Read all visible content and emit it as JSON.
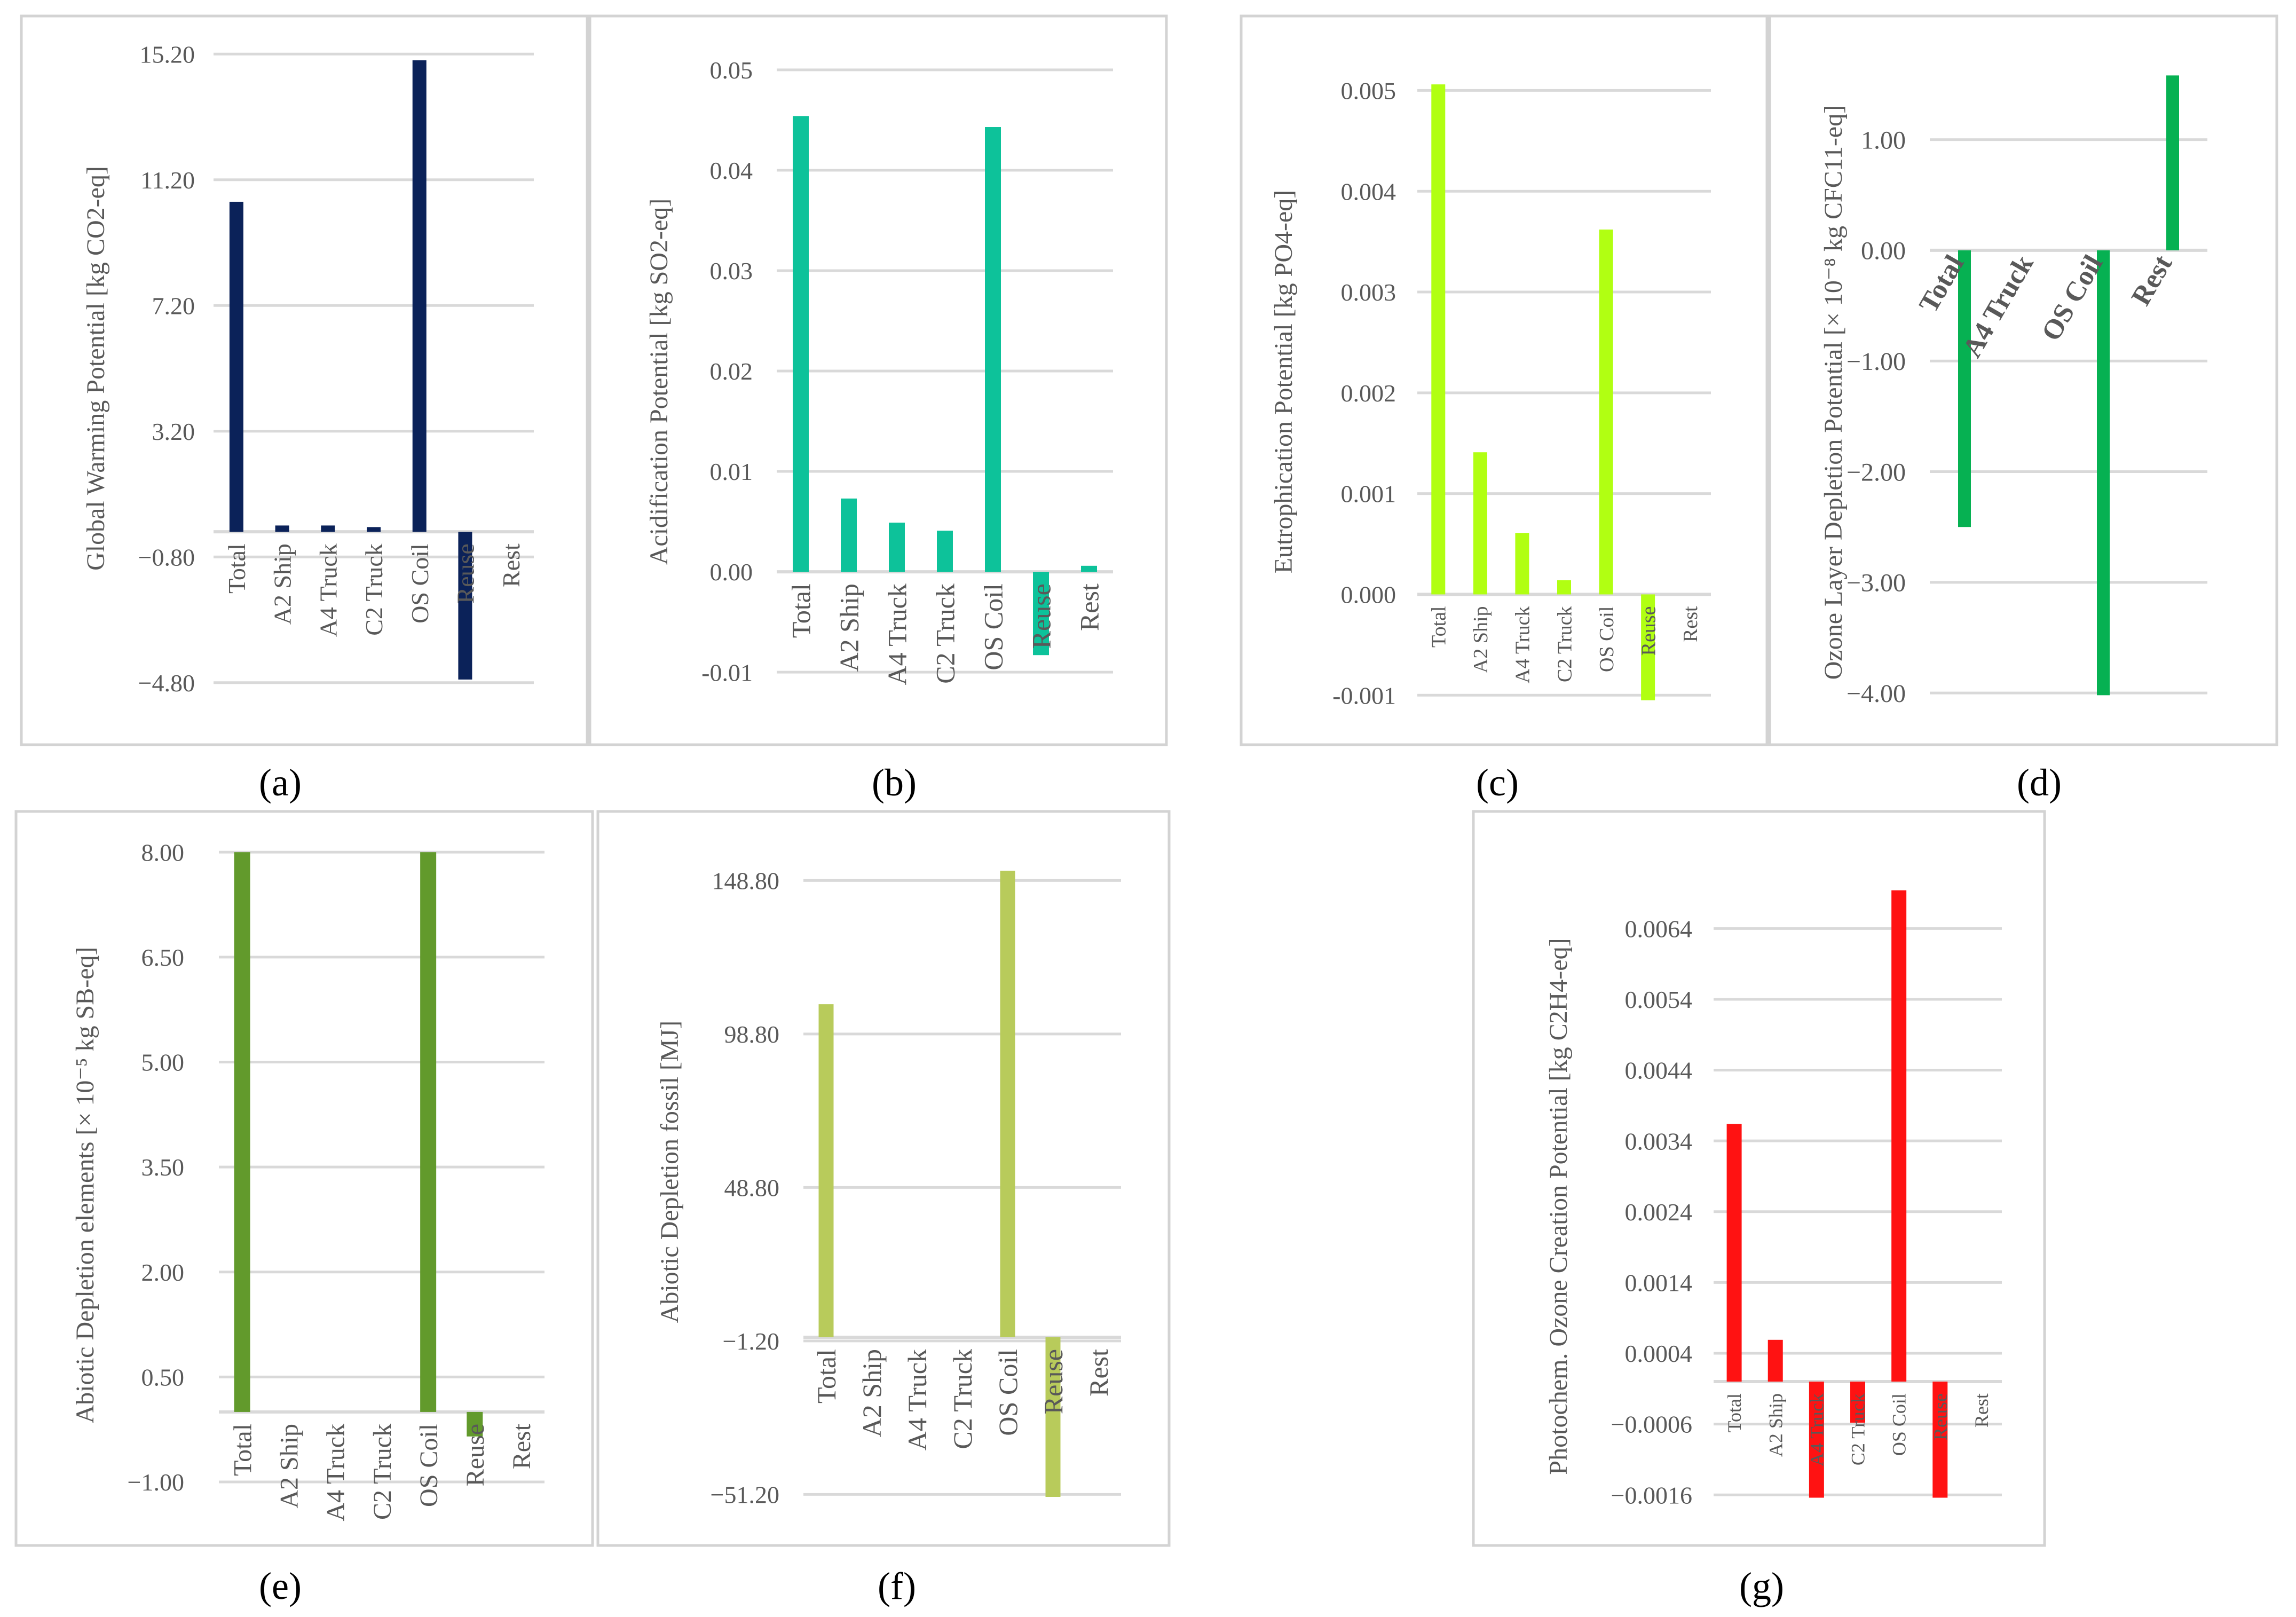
{
  "figure": {
    "panel_labels": [
      "(a)",
      "(b)",
      "(c)",
      "(d)",
      "(e)",
      "(f)",
      "(g)"
    ]
  },
  "colors": {
    "frame": "#d3d3d3",
    "grid": "#d9d9d9",
    "text": "#595959",
    "label": "#000000"
  },
  "chart_data": [
    {
      "id": "a",
      "type": "bar",
      "ylabel": "Global Warming Potential [kg CO2-eq]",
      "categories": [
        "Total",
        "A2 Ship",
        "A4 Truck",
        "C2 Truck",
        "OS Coil",
        "Reuse",
        "Rest"
      ],
      "values": [
        10.5,
        0.2,
        0.2,
        0.15,
        15.0,
        -4.7,
        0
      ],
      "yticks": [
        15.2,
        11.2,
        7.2,
        3.2,
        -0.8,
        -4.8
      ],
      "tick_labels": [
        "15.20",
        "11.20",
        "7.20",
        "3.20",
        "−0.80",
        "−4.80"
      ],
      "ylim": [
        -5.5,
        15.9
      ],
      "color": "#0b2259"
    },
    {
      "id": "b",
      "type": "bar",
      "ylabel": "Acidification Potential [kg SO2-eq]",
      "categories": [
        "Total",
        "A2 Ship",
        "A4 Truck",
        "C2 Truck",
        "OS Coil",
        "Reuse",
        "Rest"
      ],
      "values": [
        0.0454,
        0.0073,
        0.0049,
        0.0041,
        0.0443,
        -0.0083,
        0.0006
      ],
      "yticks": [
        0.05,
        0.04,
        0.03,
        0.02,
        0.01,
        0.0,
        -0.01
      ],
      "tick_labels": [
        "0.05",
        "0.04",
        "0.03",
        "0.02",
        "0.01",
        "0.00",
        "-0.01"
      ],
      "ylim": [
        -0.0135,
        0.0535
      ],
      "color": "#0dc29a"
    },
    {
      "id": "c",
      "type": "bar",
      "ylabel": "Eutrophication Potential [kg PO4-eq]",
      "categories": [
        "Total",
        "A2 Ship",
        "A4 Truck",
        "C2 Truck",
        "OS Coil",
        "Reuse",
        "Rest"
      ],
      "values": [
        0.00506,
        0.00141,
        0.00061,
        0.00014,
        0.00362,
        -0.00105,
        0
      ],
      "yticks": [
        0.005,
        0.004,
        0.003,
        0.002,
        0.001,
        0.0,
        -0.001
      ],
      "tick_labels": [
        "0.005",
        "0.004",
        "0.003",
        "0.002",
        "0.001",
        "0.000",
        "-0.001"
      ],
      "ylim": [
        -0.0012,
        0.0055
      ],
      "color": "#b1ff12"
    },
    {
      "id": "d",
      "type": "bar",
      "ylabel": "Ozone Layer Depletion Potential [× 10⁻⁸ kg CFC11-eq]",
      "categories": [
        "Total",
        "A4 Truck",
        "OS Coil",
        "Rest"
      ],
      "values": [
        -2.5,
        0,
        -4.02,
        1.58
      ],
      "yticks": [
        1.0,
        0.0,
        -1.0,
        -2.0,
        -3.0,
        -4.0
      ],
      "tick_labels": [
        "1.00",
        "0.00",
        "−1.00",
        "−2.00",
        "−3.00",
        "−4.00"
      ],
      "ylim": [
        -4.25,
        1.9
      ],
      "color": "#06b152"
    },
    {
      "id": "e",
      "type": "bar",
      "ylabel": "Abiotic Depletion elements [× 10⁻⁵ kg SB-eq]",
      "categories": [
        "Total",
        "A2 Ship",
        "A4 Truck",
        "C2 Truck",
        "OS Coil",
        "Reuse",
        "Rest"
      ],
      "values": [
        8.0,
        0,
        0,
        0,
        8.0,
        -0.35,
        0
      ],
      "yticks": [
        8.0,
        6.5,
        5.0,
        3.5,
        2.0,
        0.5,
        -1.0
      ],
      "tick_labels": [
        "8.00",
        "6.50",
        "5.00",
        "3.50",
        "2.00",
        "0.50",
        "−1.00"
      ],
      "ylim": [
        -1.45,
        8.2
      ],
      "color": "#629a2c"
    },
    {
      "id": "f",
      "type": "bar",
      "ylabel": "Abiotic Depletion fossil [MJ]",
      "categories": [
        "Total",
        "A2 Ship",
        "A4 Truck",
        "C2 Truck",
        "OS Coil",
        "Reuse",
        "Rest"
      ],
      "values": [
        108.5,
        0,
        0,
        0,
        152.0,
        -52.0,
        0
      ],
      "yticks": [
        148.8,
        98.8,
        48.8,
        -1.2,
        -51.2
      ],
      "tick_labels": [
        "148.80",
        "98.80",
        "48.80",
        "−1.20",
        "−51.20"
      ],
      "ylim": [
        -60,
        160
      ],
      "color": "#b8cb5b"
    },
    {
      "id": "g",
      "type": "bar",
      "ylabel": "Photochem. Ozone Creation Potential [kg C2H4-eq]",
      "categories": [
        "Total",
        "A2 Ship",
        "A4 Truck",
        "C2 Truck",
        "OS Coil",
        "Reuse",
        "Rest"
      ],
      "values": [
        0.00364,
        0.00059,
        -0.00164,
        -0.00058,
        0.00694,
        -0.00164,
        0
      ],
      "yticks": [
        0.0064,
        0.0054,
        0.0044,
        0.0034,
        0.0024,
        0.0014,
        0.0004,
        -0.0006,
        -0.0016
      ],
      "tick_labels": [
        "0.0064",
        "0.0054",
        "0.0044",
        "0.0034",
        "0.0024",
        "0.0014",
        "0.0004",
        "−0.0006",
        "−0.0016"
      ],
      "ylim": [
        -0.0019,
        0.0073
      ],
      "color": "#ff1212"
    }
  ]
}
